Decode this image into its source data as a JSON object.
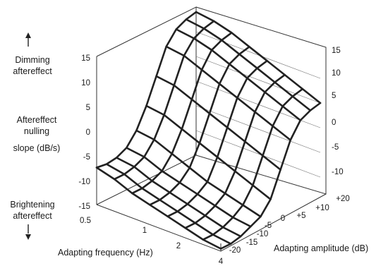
{
  "chart_data": {
    "type": "surface",
    "title": "",
    "zlabel": [
      "Aftereffect",
      "nulling",
      "slope (dB/s)"
    ],
    "z_top_annotation": [
      "Dimming",
      "aftereffect"
    ],
    "z_bottom_annotation": [
      "Brightening",
      "aftereffect"
    ],
    "xlabel": "Adapting frequency (Hz)",
    "ylabel": "Adapting amplitude (dB)",
    "z_ticks_left": [
      "15",
      "10",
      "5",
      "0",
      "-5",
      "-10",
      "-15"
    ],
    "z_ticks_right": [
      "15",
      "10",
      "5",
      "0",
      "-5",
      "-10"
    ],
    "x_ticks": [
      "0.5",
      "1",
      "2",
      "4"
    ],
    "y_ticks": [
      "-20",
      "-15",
      "-10",
      "-5",
      "0",
      "+5",
      "+10",
      "+20"
    ],
    "zlim": [
      -15,
      15
    ],
    "surface": {
      "rows_axis": "Adapting frequency (Hz), 0.5 (front) to 4 (back-right)",
      "cols_axis": "Adapting amplitude (dB), -20 to +20",
      "z": [
        [
          -7.5,
          -7.8,
          -7.5,
          -6.5,
          -4,
          0,
          5,
          10,
          12.5,
          13.5,
          14
        ],
        [
          -8.5,
          -8.5,
          -8,
          -7,
          -4.5,
          -0.5,
          4.5,
          9.5,
          12,
          13,
          13.5
        ],
        [
          -10,
          -10,
          -9.5,
          -8.5,
          -6,
          -2,
          3,
          8,
          11,
          12,
          12.5
        ],
        [
          -11,
          -11,
          -10.5,
          -9.5,
          -7.5,
          -3.5,
          1.5,
          6.5,
          9.5,
          10.5,
          11
        ],
        [
          -12,
          -12,
          -11.5,
          -10.5,
          -9,
          -5,
          0,
          5,
          8,
          9,
          9.5
        ],
        [
          -13,
          -13,
          -12.5,
          -11.5,
          -10,
          -6.5,
          -1.5,
          3.5,
          6.5,
          7.5,
          8
        ],
        [
          -14,
          -14,
          -13.5,
          -12.5,
          -11,
          -8,
          -3,
          2,
          5,
          6,
          6.5
        ],
        [
          -14.5,
          -14.5,
          -14,
          -13,
          -12,
          -9.5,
          -4.5,
          0.5,
          3.5,
          4.5,
          5
        ]
      ]
    }
  }
}
